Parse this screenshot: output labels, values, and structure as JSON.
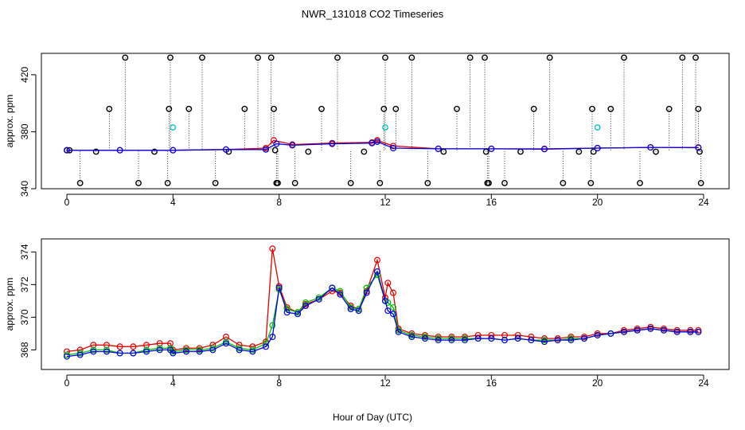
{
  "chart_data": {
    "title": "NWR_131018  CO2 Timeseries",
    "xlabel": "Hour of Day (UTC)",
    "xlim": [
      0,
      24
    ],
    "x_ticks": [
      0,
      4,
      8,
      12,
      16,
      20,
      24
    ],
    "colors": {
      "flag1": "#e00000",
      "flag2": "#00c000",
      "flag3": "#0000e0",
      "outlier": "#000000",
      "cyan": "#00c8c8"
    },
    "panels": [
      {
        "type": "line",
        "ylabel": "approx. ppm",
        "ylim": [
          340,
          435
        ],
        "y_ticks": [
          340,
          380,
          420
        ],
        "series": [
          {
            "name": "flag1",
            "x": [
              0.0,
              2.0,
              4.0,
              6.0,
              7.5,
              7.8,
              8.5,
              10.0,
              11.5,
              11.7,
              12.3,
              14.0,
              16.0,
              18.0,
              20.0,
              22.0,
              23.8
            ],
            "y": [
              367.0,
              367.0,
              367.0,
              367.5,
              368.5,
              374.0,
              371.0,
              372.0,
              372.5,
              374.0,
              370.0,
              368.0,
              368.0,
              368.0,
              368.5,
              369.0,
              369.0
            ]
          },
          {
            "name": "flag3",
            "x": [
              0.0,
              2.0,
              4.0,
              6.0,
              7.5,
              7.9,
              8.5,
              10.0,
              11.5,
              11.7,
              12.3,
              14.0,
              16.0,
              18.0,
              20.0,
              22.0,
              23.8
            ],
            "y": [
              367.0,
              367.0,
              367.0,
              367.5,
              367.5,
              371.5,
              370.5,
              371.5,
              372.0,
              373.0,
              368.5,
              368.0,
              368.0,
              367.8,
              368.5,
              369.0,
              368.8
            ]
          }
        ],
        "outliers": {
          "x": [
            0.0,
            0.1,
            0.5,
            1.1,
            1.6,
            2.2,
            2.7,
            3.3,
            3.8,
            3.85,
            3.9,
            4.6,
            5.1,
            5.6,
            6.1,
            6.7,
            7.2,
            7.7,
            7.8,
            7.85,
            7.9,
            7.95,
            8.6,
            9.1,
            9.6,
            10.2,
            10.7,
            11.2,
            11.8,
            11.95,
            12.0,
            12.4,
            13.0,
            13.6,
            14.2,
            14.7,
            15.2,
            15.75,
            15.8,
            15.85,
            15.9,
            16.5,
            17.1,
            17.6,
            18.2,
            18.7,
            19.3,
            19.75,
            19.8,
            19.85,
            20.5,
            21.0,
            21.6,
            22.2,
            22.7,
            23.2,
            23.7,
            23.8,
            23.85,
            23.9
          ],
          "y": [
            367,
            367,
            344,
            366,
            396,
            432,
            344,
            366,
            344,
            396,
            432,
            396,
            432,
            344,
            366,
            396,
            432,
            432,
            396,
            367,
            344,
            344,
            344,
            366,
            396,
            432,
            344,
            366,
            344,
            396,
            432,
            396,
            432,
            344,
            366,
            396,
            432,
            432,
            366,
            344,
            344,
            344,
            366,
            396,
            432,
            344,
            366,
            344,
            396,
            366,
            396,
            432,
            344,
            366,
            396,
            432,
            432,
            396,
            366,
            344
          ]
        },
        "cyan_points": {
          "x": [
            4.0,
            12.0,
            20.0
          ],
          "y": [
            383,
            383,
            383
          ]
        }
      },
      {
        "type": "line",
        "ylabel": "approx. ppm",
        "ylim": [
          366.8,
          374.8
        ],
        "y_ticks": [
          368,
          370,
          372,
          374
        ],
        "series": [
          {
            "name": "flag1",
            "x": [
              0.0,
              0.5,
              1.0,
              1.5,
              2.0,
              2.5,
              3.0,
              3.5,
              3.9,
              4.0,
              4.5,
              5.0,
              5.5,
              6.0,
              6.5,
              7.0,
              7.5,
              7.75,
              8.0,
              8.3,
              8.7,
              9.0,
              9.5,
              10.0,
              10.3,
              10.7,
              11.0,
              11.3,
              11.7,
              12.0,
              12.1,
              12.3,
              12.5,
              13.0,
              13.5,
              14.0,
              14.5,
              15.0,
              15.5,
              16.0,
              16.5,
              17.0,
              17.5,
              18.0,
              18.5,
              19.0,
              19.5,
              20.0,
              20.5,
              21.0,
              21.5,
              22.0,
              22.5,
              23.0,
              23.5,
              23.8
            ],
            "y": [
              367.9,
              368.0,
              368.3,
              368.3,
              368.2,
              368.2,
              368.3,
              368.4,
              368.4,
              368.0,
              368.1,
              368.1,
              368.3,
              368.8,
              368.3,
              368.2,
              368.5,
              374.2,
              371.9,
              370.6,
              370.3,
              370.8,
              371.1,
              371.6,
              371.5,
              370.7,
              370.5,
              371.6,
              373.5,
              371.2,
              372.1,
              371.5,
              369.3,
              369.0,
              368.9,
              368.8,
              368.8,
              368.8,
              368.9,
              368.9,
              368.9,
              368.9,
              368.8,
              368.7,
              368.7,
              368.8,
              368.8,
              369.0,
              369.0,
              369.2,
              369.3,
              369.4,
              369.3,
              369.2,
              369.2,
              369.2
            ]
          },
          {
            "name": "flag2",
            "x": [
              0.0,
              0.5,
              1.0,
              1.5,
              2.0,
              2.5,
              3.0,
              3.5,
              3.9,
              4.0,
              4.5,
              5.0,
              5.5,
              6.0,
              6.5,
              7.0,
              7.5,
              7.75,
              8.0,
              8.3,
              8.7,
              9.0,
              9.5,
              10.0,
              10.3,
              10.7,
              11.0,
              11.3,
              11.7,
              12.0,
              12.1,
              12.3,
              12.5,
              13.0,
              13.5,
              14.0,
              14.5,
              15.0,
              15.5,
              16.0,
              16.5,
              17.0,
              17.5,
              18.0,
              18.5,
              19.0,
              19.5,
              20.0,
              20.5,
              21.0,
              21.5,
              22.0,
              22.5,
              23.0,
              23.5,
              23.8
            ],
            "y": [
              367.7,
              367.8,
              368.0,
              368.0,
              367.8,
              367.8,
              368.0,
              368.1,
              368.1,
              367.9,
              368.0,
              368.0,
              368.1,
              368.5,
              368.1,
              368.0,
              368.4,
              369.5,
              371.7,
              370.5,
              370.3,
              370.9,
              371.2,
              371.8,
              371.6,
              370.6,
              370.5,
              371.8,
              372.6,
              371.0,
              370.9,
              370.6,
              369.2,
              368.9,
              368.8,
              368.7,
              368.7,
              368.7,
              368.7,
              368.7,
              368.6,
              368.7,
              368.6,
              368.6,
              368.6,
              368.7,
              368.7,
              368.9,
              369.0,
              369.1,
              369.2,
              369.3,
              369.2,
              369.1,
              369.1,
              369.1
            ]
          },
          {
            "name": "flag3",
            "x": [
              0.0,
              0.5,
              1.0,
              1.5,
              2.0,
              2.5,
              3.0,
              3.5,
              3.9,
              4.0,
              4.5,
              5.0,
              5.5,
              6.0,
              6.5,
              7.0,
              7.5,
              7.75,
              8.0,
              8.3,
              8.7,
              9.0,
              9.5,
              10.0,
              10.3,
              10.7,
              11.0,
              11.3,
              11.7,
              12.0,
              12.1,
              12.3,
              12.5,
              13.0,
              13.5,
              14.0,
              14.5,
              15.0,
              15.5,
              16.0,
              16.5,
              17.0,
              17.5,
              18.0,
              18.5,
              19.0,
              19.5,
              20.0,
              20.5,
              21.0,
              21.5,
              22.0,
              22.5,
              23.0,
              23.5,
              23.8
            ],
            "y": [
              367.6,
              367.7,
              367.9,
              367.9,
              367.8,
              367.8,
              367.9,
              368.0,
              368.0,
              367.8,
              367.9,
              367.9,
              368.0,
              368.4,
              368.0,
              367.9,
              368.2,
              368.8,
              371.8,
              370.3,
              370.2,
              370.7,
              371.1,
              371.8,
              371.4,
              370.5,
              370.4,
              371.5,
              372.8,
              371.0,
              370.4,
              370.2,
              369.1,
              368.8,
              368.7,
              368.6,
              368.6,
              368.6,
              368.7,
              368.7,
              368.6,
              368.7,
              368.6,
              368.5,
              368.6,
              368.6,
              368.7,
              368.9,
              369.0,
              369.1,
              369.2,
              369.3,
              369.2,
              369.1,
              369.1,
              369.1
            ]
          }
        ]
      }
    ]
  }
}
